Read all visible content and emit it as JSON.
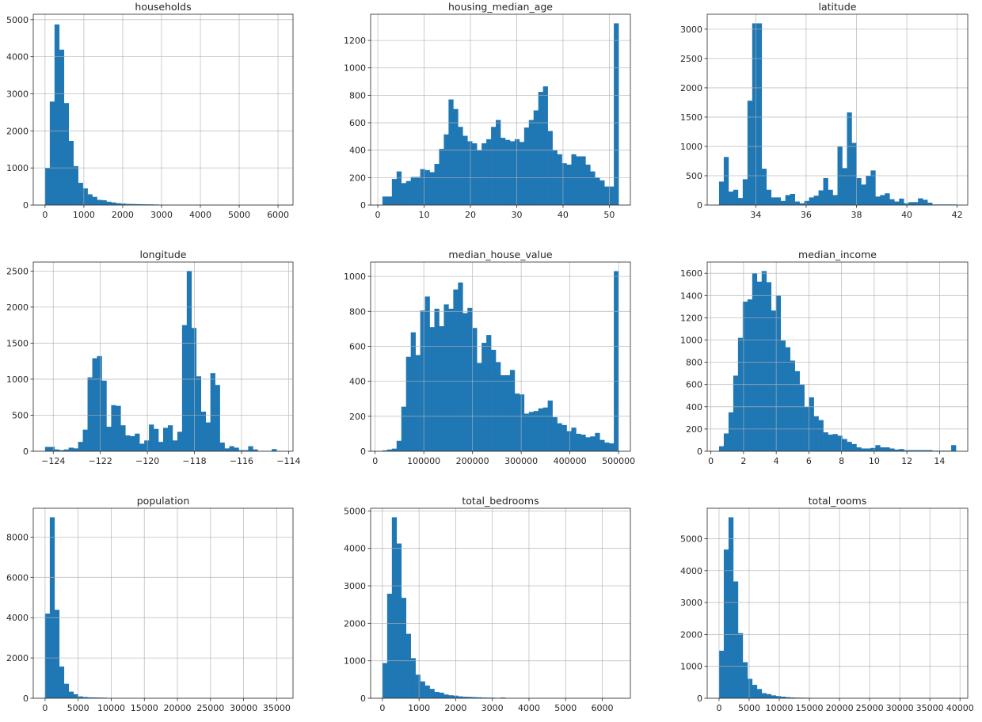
{
  "chart_data": [
    {
      "type": "bar",
      "title": "households",
      "bin_range": [
        1,
        6082
      ],
      "xlim": [
        -303,
        6386
      ],
      "ylim": [
        0,
        5145
      ],
      "xticks": [
        0,
        1000,
        2000,
        3000,
        4000,
        5000,
        6000
      ],
      "xticklabels": [
        "0",
        "1000",
        "2000",
        "3000",
        "4000",
        "5000",
        "6000"
      ],
      "yticks": [
        0,
        1000,
        2000,
        3000,
        4000,
        5000
      ],
      "yticklabels": [
        "0",
        "1000",
        "2000",
        "3000",
        "4000",
        "5000"
      ],
      "counts": [
        1000,
        2790,
        4870,
        4190,
        2750,
        1730,
        1050,
        600,
        450,
        290,
        220,
        140,
        130,
        90,
        70,
        50,
        40,
        30,
        28,
        25,
        22,
        20,
        18,
        15,
        10,
        5,
        4,
        3,
        3,
        2,
        2,
        1,
        1,
        1,
        1,
        1,
        1,
        1,
        0,
        0,
        1,
        0,
        0,
        0,
        0,
        0,
        0,
        0,
        0,
        1
      ]
    },
    {
      "type": "bar",
      "title": "housing_median_age",
      "bin_range": [
        1,
        52
      ],
      "xlim": [
        -1.55,
        54.55
      ],
      "ylim": [
        0,
        1391
      ],
      "xticks": [
        0,
        10,
        20,
        30,
        40,
        50
      ],
      "xticklabels": [
        "0",
        "10",
        "20",
        "30",
        "40",
        "50"
      ],
      "yticks": [
        0,
        200,
        400,
        600,
        800,
        1000,
        1200
      ],
      "yticklabels": [
        "0",
        "200",
        "400",
        "600",
        "800",
        "1000",
        "1200"
      ],
      "counts": [
        62,
        62,
        190,
        245,
        160,
        175,
        205,
        205,
        262,
        255,
        240,
        300,
        410,
        515,
        770,
        700,
        570,
        505,
        465,
        450,
        400,
        450,
        480,
        570,
        620,
        490,
        475,
        465,
        480,
        460,
        565,
        620,
        690,
        825,
        865,
        540,
        400,
        370,
        305,
        295,
        370,
        355,
        355,
        295,
        245,
        200,
        180,
        135,
        135,
        1325
      ]
    },
    {
      "type": "bar",
      "title": "latitude",
      "bin_range": [
        32.54,
        41.95
      ],
      "xlim": [
        32.07,
        42.42
      ],
      "ylim": [
        0,
        3255
      ],
      "xticks": [
        34,
        36,
        38,
        40,
        42
      ],
      "xticklabels": [
        "34",
        "36",
        "38",
        "40",
        "42"
      ],
      "yticks": [
        0,
        500,
        1000,
        1500,
        2000,
        2500,
        3000
      ],
      "yticklabels": [
        "0",
        "500",
        "1000",
        "1500",
        "2000",
        "2500",
        "3000"
      ],
      "counts": [
        400,
        820,
        230,
        260,
        120,
        440,
        1780,
        3100,
        3100,
        620,
        260,
        130,
        130,
        70,
        170,
        190,
        60,
        30,
        70,
        130,
        160,
        250,
        460,
        260,
        170,
        1000,
        630,
        1580,
        1060,
        460,
        350,
        500,
        590,
        145,
        170,
        200,
        100,
        60,
        110,
        30,
        50,
        50,
        115,
        90,
        40,
        10,
        10,
        10,
        10,
        10
      ]
    },
    {
      "type": "bar",
      "title": "longitude",
      "bin_range": [
        -124.35,
        -114.31
      ],
      "xlim": [
        -124.85,
        -113.81
      ],
      "ylim": [
        0,
        2625
      ],
      "xticks": [
        -124,
        -122,
        -120,
        -118,
        -116,
        -114
      ],
      "xticklabels": [
        "−124",
        "−122",
        "−120",
        "−118",
        "−116",
        "−114"
      ],
      "yticks": [
        0,
        500,
        1000,
        1500,
        2000,
        2500
      ],
      "yticklabels": [
        "0",
        "500",
        "1000",
        "1500",
        "2000",
        "2500"
      ],
      "counts": [
        60,
        60,
        25,
        15,
        25,
        50,
        40,
        130,
        300,
        1025,
        1290,
        1320,
        980,
        340,
        640,
        630,
        360,
        220,
        210,
        245,
        105,
        150,
        370,
        310,
        130,
        325,
        360,
        150,
        270,
        1750,
        2500,
        1710,
        1040,
        550,
        400,
        1085,
        920,
        120,
        40,
        70,
        50,
        15,
        15,
        70,
        25,
        5,
        5,
        5,
        30,
        5
      ]
    },
    {
      "type": "bar",
      "title": "median_house_value",
      "bin_range": [
        14999,
        500001
      ],
      "xlim": [
        -9251,
        524251
      ],
      "ylim": [
        0,
        1082
      ],
      "xticks": [
        0,
        100000,
        200000,
        300000,
        400000,
        500000
      ],
      "xticklabels": [
        "0",
        "100000",
        "200000",
        "300000",
        "400000",
        "500000"
      ],
      "yticks": [
        0,
        200,
        400,
        600,
        800,
        1000
      ],
      "yticklabels": [
        "0",
        "200",
        "400",
        "600",
        "800",
        "1000"
      ],
      "counts": [
        5,
        10,
        15,
        60,
        255,
        540,
        680,
        550,
        805,
        885,
        710,
        815,
        715,
        840,
        815,
        925,
        965,
        790,
        820,
        705,
        505,
        620,
        665,
        580,
        510,
        435,
        435,
        465,
        330,
        325,
        215,
        225,
        230,
        245,
        250,
        290,
        195,
        160,
        150,
        115,
        135,
        100,
        95,
        80,
        85,
        105,
        65,
        50,
        45,
        1030
      ]
    },
    {
      "type": "bar",
      "title": "median_income",
      "bin_range": [
        0.4999,
        15.0001
      ],
      "xlim": [
        -0.225,
        15.725
      ],
      "ylim": [
        0,
        1701
      ],
      "xticks": [
        0,
        2,
        4,
        6,
        8,
        10,
        12,
        14
      ],
      "xticklabels": [
        "0",
        "2",
        "4",
        "6",
        "8",
        "10",
        "12",
        "14"
      ],
      "yticks": [
        0,
        200,
        400,
        600,
        800,
        1000,
        1200,
        1400,
        1600
      ],
      "yticklabels": [
        "0",
        "200",
        "400",
        "600",
        "800",
        "1000",
        "1200",
        "1400",
        "1600"
      ],
      "counts": [
        45,
        160,
        350,
        680,
        1020,
        1345,
        1365,
        1600,
        1525,
        1620,
        1520,
        1265,
        1400,
        995,
        935,
        815,
        720,
        600,
        400,
        485,
        315,
        280,
        170,
        150,
        155,
        140,
        110,
        85,
        65,
        35,
        25,
        25,
        30,
        55,
        35,
        35,
        25,
        15,
        20,
        10,
        10,
        10,
        10,
        10,
        10,
        5,
        5,
        5,
        5,
        55
      ]
    },
    {
      "type": "bar",
      "title": "population",
      "bin_range": [
        3,
        35682
      ],
      "xlim": [
        -1781,
        37466
      ],
      "ylim": [
        0,
        9430
      ],
      "xticks": [
        0,
        5000,
        10000,
        15000,
        20000,
        25000,
        30000,
        35000
      ],
      "xticklabels": [
        "0",
        "5000",
        "10000",
        "15000",
        "20000",
        "25000",
        "30000",
        "35000"
      ],
      "yticks": [
        0,
        2000,
        4000,
        6000,
        8000
      ],
      "yticklabels": [
        "0",
        "2000",
        "4000",
        "6000",
        "8000"
      ],
      "counts": [
        4200,
        8980,
        4390,
        1575,
        720,
        330,
        200,
        90,
        60,
        45,
        40,
        35,
        30,
        20,
        10,
        5,
        3,
        2,
        2,
        1,
        1,
        1,
        1,
        1,
        1,
        0,
        0,
        1,
        0,
        0,
        0,
        0,
        0,
        0,
        0,
        0,
        0,
        0,
        0,
        0,
        0,
        0,
        0,
        0,
        0,
        0,
        0,
        0,
        0,
        1
      ]
    },
    {
      "type": "bar",
      "title": "total_bedrooms",
      "bin_range": [
        1,
        6445
      ],
      "xlim": [
        -321,
        6767
      ],
      "ylim": [
        0,
        5071
      ],
      "xticks": [
        0,
        1000,
        2000,
        3000,
        4000,
        5000,
        6000
      ],
      "xticklabels": [
        "0",
        "1000",
        "2000",
        "3000",
        "4000",
        "5000",
        "6000"
      ],
      "yticks": [
        0,
        1000,
        2000,
        3000,
        4000,
        5000
      ],
      "yticklabels": [
        "0",
        "1000",
        "2000",
        "3000",
        "4000",
        "5000"
      ],
      "counts": [
        940,
        2790,
        4830,
        4130,
        2680,
        1720,
        1070,
        630,
        450,
        340,
        250,
        170,
        150,
        100,
        80,
        70,
        50,
        40,
        35,
        30,
        25,
        20,
        18,
        15,
        10,
        20,
        5,
        3,
        2,
        2,
        1,
        1,
        1,
        1,
        1,
        0,
        0,
        0,
        0,
        1,
        0,
        0,
        0,
        0,
        0,
        0,
        0,
        0,
        0,
        1
      ]
    },
    {
      "type": "bar",
      "title": "total_rooms",
      "bin_range": [
        2,
        39320
      ],
      "xlim": [
        -1964,
        41286
      ],
      "ylim": [
        0,
        5954
      ],
      "xticks": [
        0,
        5000,
        10000,
        15000,
        20000,
        25000,
        30000,
        35000,
        40000
      ],
      "xticklabels": [
        "0",
        "5000",
        "10000",
        "15000",
        "20000",
        "25000",
        "30000",
        "35000",
        "40000"
      ],
      "yticks": [
        0,
        1000,
        2000,
        3000,
        4000,
        5000
      ],
      "yticklabels": [
        "0",
        "1000",
        "2000",
        "3000",
        "4000",
        "5000"
      ],
      "counts": [
        1490,
        4660,
        5670,
        3660,
        2040,
        1130,
        610,
        420,
        290,
        160,
        130,
        90,
        70,
        50,
        35,
        25,
        20,
        18,
        15,
        12,
        10,
        8,
        6,
        5,
        2,
        1,
        1,
        1,
        0,
        0,
        0,
        0,
        0,
        0,
        0,
        0,
        0,
        0,
        0,
        1
      ]
    }
  ],
  "colors": {
    "bar": "#1f77b4",
    "grid": "#b0b0b0",
    "axis": "#262626"
  }
}
